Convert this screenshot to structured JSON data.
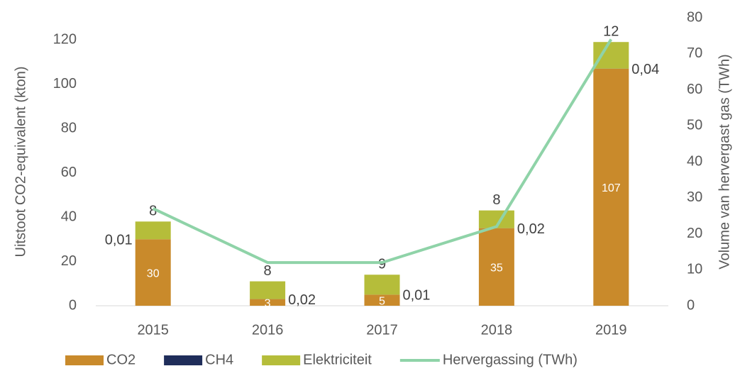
{
  "chart_data": {
    "type": "bar",
    "categories": [
      "2015",
      "2016",
      "2017",
      "2018",
      "2019"
    ],
    "series": [
      {
        "name": "CO2",
        "color": "#c98a2b",
        "values": [
          30,
          3,
          5,
          35,
          107
        ]
      },
      {
        "name": "CH4",
        "color": "#1f2d5a",
        "values": [
          0.01,
          0.02,
          0.01,
          0.02,
          0.04
        ],
        "value_labels": [
          "0,01",
          "0,02",
          "0,01",
          "0,02",
          "0,04"
        ]
      },
      {
        "name": "Elektriciteit",
        "color": "#b5bd3a",
        "values": [
          8,
          8,
          9,
          8,
          12
        ]
      },
      {
        "name": "Hervergassing (TWh)",
        "color": "#8fd3a8",
        "type": "line",
        "axis": "y2",
        "values": [
          27,
          12,
          12,
          22,
          74
        ]
      }
    ],
    "ylabel": "Uitstoot CO2-equivalent (kton)",
    "y2label": "Volume van hervergast gas (TWh)",
    "ylim": [
      0,
      130
    ],
    "yticks": [
      0,
      20,
      40,
      60,
      80,
      100,
      120
    ],
    "y2lim": [
      0,
      80
    ],
    "y2ticks": [
      0,
      10,
      20,
      30,
      40,
      50,
      60,
      70,
      80
    ],
    "stacked": true,
    "grid": false,
    "legend": "bottom"
  }
}
